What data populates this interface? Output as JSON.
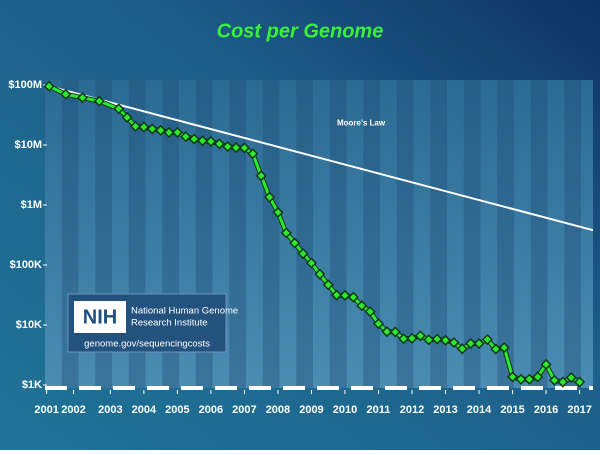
{
  "chart_data": {
    "type": "line",
    "title": "Cost per Genome",
    "log_scale": true,
    "xlim": [
      2001.55,
      2017.9
    ],
    "ylim": [
      1000,
      100000000
    ],
    "xticks": [
      {
        "value": 2001.6,
        "label": "2001"
      },
      {
        "value": 2002.4,
        "label": "2002"
      },
      {
        "value": 2003.5,
        "label": "2003"
      },
      {
        "value": 2004.5,
        "label": "2004"
      },
      {
        "value": 2005.5,
        "label": "2005"
      },
      {
        "value": 2006.5,
        "label": "2006"
      },
      {
        "value": 2007.5,
        "label": "2007"
      },
      {
        "value": 2008.5,
        "label": "2008"
      },
      {
        "value": 2009.5,
        "label": "2009"
      },
      {
        "value": 2010.5,
        "label": "2010"
      },
      {
        "value": 2011.5,
        "label": "2011"
      },
      {
        "value": 2012.5,
        "label": "2012"
      },
      {
        "value": 2013.5,
        "label": "2013"
      },
      {
        "value": 2014.5,
        "label": "2014"
      },
      {
        "value": 2015.5,
        "label": "2015"
      },
      {
        "value": 2016.5,
        "label": "2016"
      },
      {
        "value": 2017.5,
        "label": "2017"
      }
    ],
    "yticks": [
      {
        "value": 1000,
        "label": "$1K"
      },
      {
        "value": 10000,
        "label": "$10K"
      },
      {
        "value": 100000,
        "label": "$100K"
      },
      {
        "value": 1000000,
        "label": "$1M"
      },
      {
        "value": 10000000,
        "label": "$10M"
      },
      {
        "value": 100000000,
        "label": "$100M"
      }
    ],
    "series": [
      {
        "color": "#2ee82e",
        "x": [
          2001.67,
          2002.17,
          2002.67,
          2003.17,
          2003.75,
          2004.0,
          2004.25,
          2004.5,
          2004.75,
          2005.0,
          2005.25,
          2005.5,
          2005.75,
          2006.0,
          2006.25,
          2006.5,
          2006.75,
          2007.0,
          2007.25,
          2007.5,
          2007.75,
          2008.0,
          2008.25,
          2008.5,
          2008.75,
          2009.0,
          2009.25,
          2009.5,
          2009.75,
          2010.0,
          2010.25,
          2010.5,
          2010.75,
          2011.0,
          2011.25,
          2011.5,
          2011.75,
          2012.0,
          2012.25,
          2012.5,
          2012.75,
          2013.0,
          2013.25,
          2013.5,
          2013.75,
          2014.0,
          2014.25,
          2014.5,
          2014.75,
          2015.0,
          2015.25,
          2015.5,
          2015.75,
          2016.0,
          2016.25,
          2016.5,
          2016.75,
          2017.0,
          2017.25,
          2017.5
        ],
        "values": [
          95263072,
          70175437,
          61448422,
          53751684,
          40157554,
          28780376,
          20442576,
          19934346,
          18519312,
          17534970,
          16159699,
          16180224,
          13801124,
          12585659,
          11732535,
          11455315,
          10474556,
          9408739,
          9047003,
          8927342,
          7147571,
          3063820,
          1352982,
          752080,
          342502,
          232735,
          154714,
          108065,
          70333,
          46774,
          31512,
          31125,
          29092,
          20963,
          16712,
          10497,
          7743,
          7666,
          5901,
          5985,
          6618,
          5671,
          5826,
          5550,
          5096,
          4008,
          4920,
          4905,
          5731,
          3970,
          4211,
          1363,
          1245,
          1246,
          1363,
          2200,
          1200,
          1121,
          1330,
          1121
        ]
      },
      {
        "name": "Moore's Law",
        "color": "#ffffff",
        "x": [
          2001.67,
          2017.9
        ],
        "values": [
          95263072,
          380000
        ]
      }
    ]
  },
  "logo": {
    "acronym": "NIH",
    "lines": [
      "National Human Genome",
      "Research Institute"
    ],
    "url": "genome.gov/sequencingcosts"
  }
}
